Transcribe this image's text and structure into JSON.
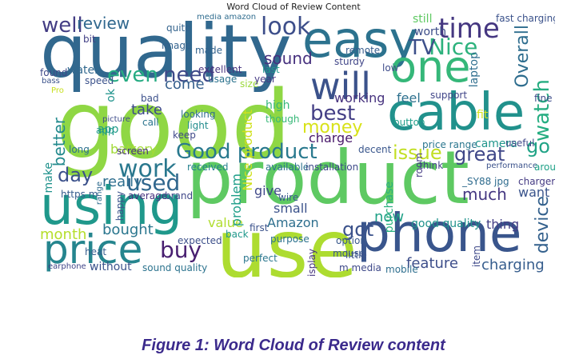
{
  "figure": {
    "title": "Word Cloud of Review Content",
    "caption": "Figure 1: Word Cloud of Review content"
  },
  "wordcloud": {
    "words": [
      {
        "text": "good",
        "color": "#8fd744"
      },
      {
        "text": "product",
        "color": "#5ec962"
      },
      {
        "text": "quality",
        "color": "#31688e"
      },
      {
        "text": "use",
        "color": "#addc30"
      },
      {
        "text": "phone",
        "color": "#39558c"
      },
      {
        "text": "cable",
        "color": "#21918c"
      },
      {
        "text": "using",
        "color": "#1f988b"
      },
      {
        "text": "easy",
        "color": "#2c728e"
      },
      {
        "text": "one",
        "color": "#35b779"
      },
      {
        "text": "price",
        "color": "#25858e"
      },
      {
        "text": "will",
        "color": "#3b528b"
      },
      {
        "text": "Good product",
        "color": "#29798e"
      },
      {
        "text": "work",
        "color": "#2a788e"
      },
      {
        "text": "time",
        "color": "#453781"
      },
      {
        "text": "Nice",
        "color": "#2db27d"
      },
      {
        "text": "even",
        "color": "#25ab82"
      },
      {
        "text": "need",
        "color": "#3e4989"
      },
      {
        "text": "best",
        "color": "#433e85"
      },
      {
        "text": "money",
        "color": "#d8e219"
      },
      {
        "text": "look",
        "color": "#3d4e8a"
      },
      {
        "text": "sound",
        "color": "#46307e"
      },
      {
        "text": "TV",
        "color": "#3c4f8a"
      },
      {
        "text": "watch",
        "color": "#26ad81"
      },
      {
        "text": "Overall",
        "color": "#2e6d8e"
      },
      {
        "text": "issue",
        "color": "#c2df23"
      },
      {
        "text": "great",
        "color": "#3f4788"
      },
      {
        "text": "go",
        "color": "#20a386"
      },
      {
        "text": "used",
        "color": "#31678e"
      },
      {
        "text": "day",
        "color": "#3b518b"
      },
      {
        "text": "buy",
        "color": "#481f70"
      },
      {
        "text": "better",
        "color": "#238a8d"
      },
      {
        "text": "much",
        "color": "#453882"
      },
      {
        "text": "device",
        "color": "#34618d"
      },
      {
        "text": "feature",
        "color": "#3d4e8a"
      },
      {
        "text": "charging",
        "color": "#365d8d"
      },
      {
        "text": "month",
        "color": "#b5de2b"
      },
      {
        "text": "bought",
        "color": "#2a768e"
      },
      {
        "text": "well",
        "color": "#433d84"
      },
      {
        "text": "review",
        "color": "#31688e"
      },
      {
        "text": "come",
        "color": "#355f8d"
      },
      {
        "text": "working",
        "color": "#46327e"
      },
      {
        "text": "feel",
        "color": "#2d708e"
      },
      {
        "text": "charge",
        "color": "#48186a"
      },
      {
        "text": "take",
        "color": "#3e4a89"
      },
      {
        "text": "battery",
        "color": "#a2da37"
      },
      {
        "text": "got",
        "color": "#3b528b"
      },
      {
        "text": "now",
        "color": "#1fa187"
      },
      {
        "text": "really",
        "color": "#2e6e8e"
      },
      {
        "text": "value",
        "color": "#b0dd2f"
      },
      {
        "text": "Amazon",
        "color": "#2e6f8e"
      },
      {
        "text": "give",
        "color": "#3f4889"
      },
      {
        "text": "small",
        "color": "#3b528b"
      },
      {
        "text": "problem",
        "color": "#1f9e89"
      },
      {
        "text": "Nice product",
        "color": "#d0e11c"
      },
      {
        "text": "purchase",
        "color": "#29af7f"
      },
      {
        "text": "good quality",
        "color": "#20928c"
      },
      {
        "text": "thing",
        "color": "#433e85"
      },
      {
        "text": "camera",
        "color": "#1f958b"
      },
      {
        "text": "want",
        "color": "#3a548c"
      },
      {
        "text": "app",
        "color": "#1f9a8a"
      },
      {
        "text": "worth",
        "color": "#3d4d8a"
      },
      {
        "text": "still",
        "color": "#5ec962"
      },
      {
        "text": "fast charging",
        "color": "#3b528b"
      },
      {
        "text": "size",
        "color": "#9bd93c"
      },
      {
        "text": "water",
        "color": "#31688e"
      },
      {
        "text": "excellent",
        "color": "#46337e"
      },
      {
        "text": "usage",
        "color": "#2c738e"
      },
      {
        "text": "year",
        "color": "#443983"
      },
      {
        "text": "last",
        "color": "#1f988b"
      },
      {
        "text": "sturdy",
        "color": "#404588"
      },
      {
        "text": "low",
        "color": "#3e4c8a"
      },
      {
        "text": "speed",
        "color": "#3b528b"
      },
      {
        "text": "bit",
        "color": "#424086"
      },
      {
        "text": "quite",
        "color": "#33638d"
      },
      {
        "text": "image",
        "color": "#33628d"
      },
      {
        "text": "made",
        "color": "#33638d"
      },
      {
        "text": "remote",
        "color": "#365c8d"
      },
      {
        "text": "media amazon",
        "color": "#2f6c8e"
      },
      {
        "text": "fit",
        "color": "#d5e21a"
      },
      {
        "text": "support",
        "color": "#404588"
      },
      {
        "text": "laptop",
        "color": "#2e6e8e"
      },
      {
        "text": "fine",
        "color": "#3e4c8a"
      },
      {
        "text": "ok",
        "color": "#20938c"
      },
      {
        "text": "bad",
        "color": "#3c508b"
      },
      {
        "text": "looking",
        "color": "#2e6f8e"
      },
      {
        "text": "light",
        "color": "#228c8d"
      },
      {
        "text": "high",
        "color": "#35b779"
      },
      {
        "text": "though",
        "color": "#37b878"
      },
      {
        "text": "call",
        "color": "#2b748e"
      },
      {
        "text": "keep",
        "color": "#3f4889"
      },
      {
        "text": "screen",
        "color": "#46307e"
      },
      {
        "text": "long",
        "color": "#2c718e"
      },
      {
        "text": "make",
        "color": "#20928c"
      },
      {
        "text": "https m",
        "color": "#365c8d"
      },
      {
        "text": "range",
        "color": "#2f6b8e"
      },
      {
        "text": "happy",
        "color": "#3b528b"
      },
      {
        "text": "average",
        "color": "#46307e"
      },
      {
        "text": "brand",
        "color": "#3f4788"
      },
      {
        "text": "received",
        "color": "#26828e"
      },
      {
        "text": "available",
        "color": "#2c738e"
      },
      {
        "text": "installation",
        "color": "#3e4a89"
      },
      {
        "text": "price range",
        "color": "#2a768e"
      },
      {
        "text": "useful",
        "color": "#3f4788"
      },
      {
        "text": "decent",
        "color": "#39568c"
      },
      {
        "text": "performance",
        "color": "#3b528b"
      },
      {
        "text": "around",
        "color": "#1fa187"
      },
      {
        "text": "button",
        "color": "#1f9e89"
      },
      {
        "text": "wire",
        "color": "#38588c"
      },
      {
        "text": "first",
        "color": "#3b528b"
      },
      {
        "text": "purpose",
        "color": "#2c718e"
      },
      {
        "text": "room",
        "color": "#443983"
      },
      {
        "text": "think",
        "color": "#414287"
      },
      {
        "text": "_SY88 jpg",
        "color": "#2f6c8e"
      },
      {
        "text": "charger",
        "color": "#443a83"
      },
      {
        "text": "back",
        "color": "#1f988b"
      },
      {
        "text": "expected",
        "color": "#3c4f8a"
      },
      {
        "text": "option",
        "color": "#38588c"
      },
      {
        "text": "mouse",
        "color": "#39568c"
      },
      {
        "text": "little",
        "color": "#3b528b"
      },
      {
        "text": "perfect",
        "color": "#2a778e"
      },
      {
        "text": "display",
        "color": "#46337e"
      },
      {
        "text": "item",
        "color": "#3e4989"
      },
      {
        "text": "heat",
        "color": "#365d8d"
      },
      {
        "text": "without",
        "color": "#3b528b"
      },
      {
        "text": "sound quality",
        "color": "#2c738e"
      },
      {
        "text": "m media",
        "color": "#3e4989"
      },
      {
        "text": "mobile",
        "color": "#2e6f8e"
      },
      {
        "text": "earphone",
        "color": "#404588"
      },
      {
        "text": "found",
        "color": "#3e4989"
      },
      {
        "text": "bass",
        "color": "#3b528b"
      },
      {
        "text": "Pro",
        "color": "#c8e020"
      },
      {
        "text": "picture",
        "color": "#3e4c8a"
      },
      {
        "text": "app",
        "color": "#1f9a8a"
      }
    ]
  }
}
